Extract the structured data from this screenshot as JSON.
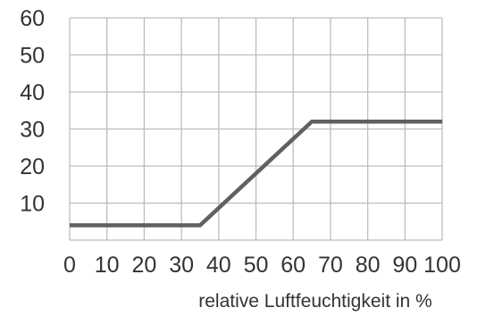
{
  "chart_data": {
    "type": "line",
    "title": "",
    "xlabel": "relative Luftfeuchtigkeit in %",
    "ylabel": "",
    "xlim": [
      0,
      100
    ],
    "ylim": [
      0,
      60
    ],
    "x_ticks": [
      0,
      10,
      20,
      30,
      40,
      50,
      60,
      70,
      80,
      90,
      100
    ],
    "x_tick_labels": [
      "0",
      "10",
      "20",
      "30",
      "40",
      "50",
      "60",
      "70",
      "80",
      "90",
      "100"
    ],
    "y_ticks": [
      10,
      20,
      30,
      40,
      50,
      60
    ],
    "y_tick_labels": [
      "10",
      "20",
      "30",
      "40",
      "50",
      "60"
    ],
    "grid": true,
    "series": [
      {
        "color": "#606060",
        "points": [
          [
            0,
            4
          ],
          [
            35,
            4
          ],
          [
            65,
            32
          ],
          [
            100,
            32
          ]
        ]
      }
    ]
  }
}
